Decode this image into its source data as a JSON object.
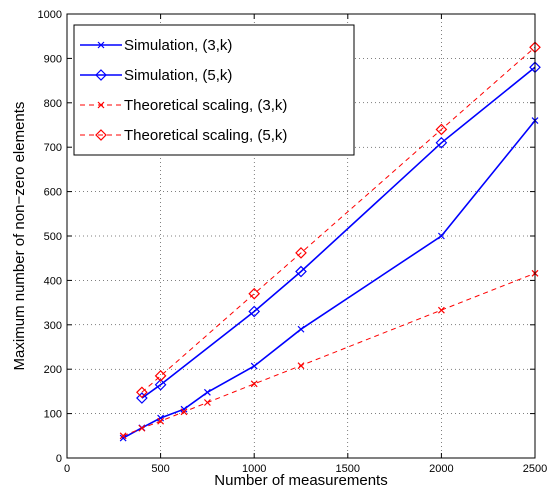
{
  "chart_data": {
    "type": "line",
    "title": "",
    "xlabel": "Number of measurements",
    "ylabel": "Maximum number of non−zero elements",
    "xlim": [
      0,
      2500
    ],
    "ylim": [
      0,
      1000
    ],
    "xticks": [
      0,
      500,
      1000,
      1500,
      2000,
      2500
    ],
    "yticks": [
      0,
      100,
      200,
      300,
      400,
      500,
      600,
      700,
      800,
      900,
      1000
    ],
    "grid": true,
    "legend_position": "top-left",
    "series": [
      {
        "name": "Simulation, (3,k)",
        "color": "#0000ff",
        "style": "solid",
        "marker": "x",
        "x": [
          300,
          400,
          500,
          625,
          750,
          1000,
          1250,
          2000,
          2500
        ],
        "y": [
          45,
          68,
          90,
          110,
          148,
          207,
          290,
          500,
          760
        ]
      },
      {
        "name": "Simulation, (5,k)",
        "color": "#0000ff",
        "style": "solid",
        "marker": "diamond",
        "x": [
          400,
          500,
          1000,
          1250,
          2000,
          2500
        ],
        "y": [
          135,
          165,
          330,
          420,
          710,
          880
        ]
      },
      {
        "name": "Theoretical scaling, (3,k)",
        "color": "#ff0000",
        "style": "dashed",
        "marker": "x",
        "x": [
          300,
          400,
          500,
          625,
          750,
          1000,
          1250,
          2000,
          2500
        ],
        "y": [
          50,
          67,
          83,
          104,
          125,
          167,
          208,
          333,
          416
        ]
      },
      {
        "name": "Theoretical scaling, (5,k)",
        "color": "#ff0000",
        "style": "dashed",
        "marker": "diamond",
        "x": [
          400,
          500,
          1000,
          1250,
          2000,
          2500
        ],
        "y": [
          148,
          185,
          370,
          462,
          740,
          925
        ]
      }
    ]
  }
}
